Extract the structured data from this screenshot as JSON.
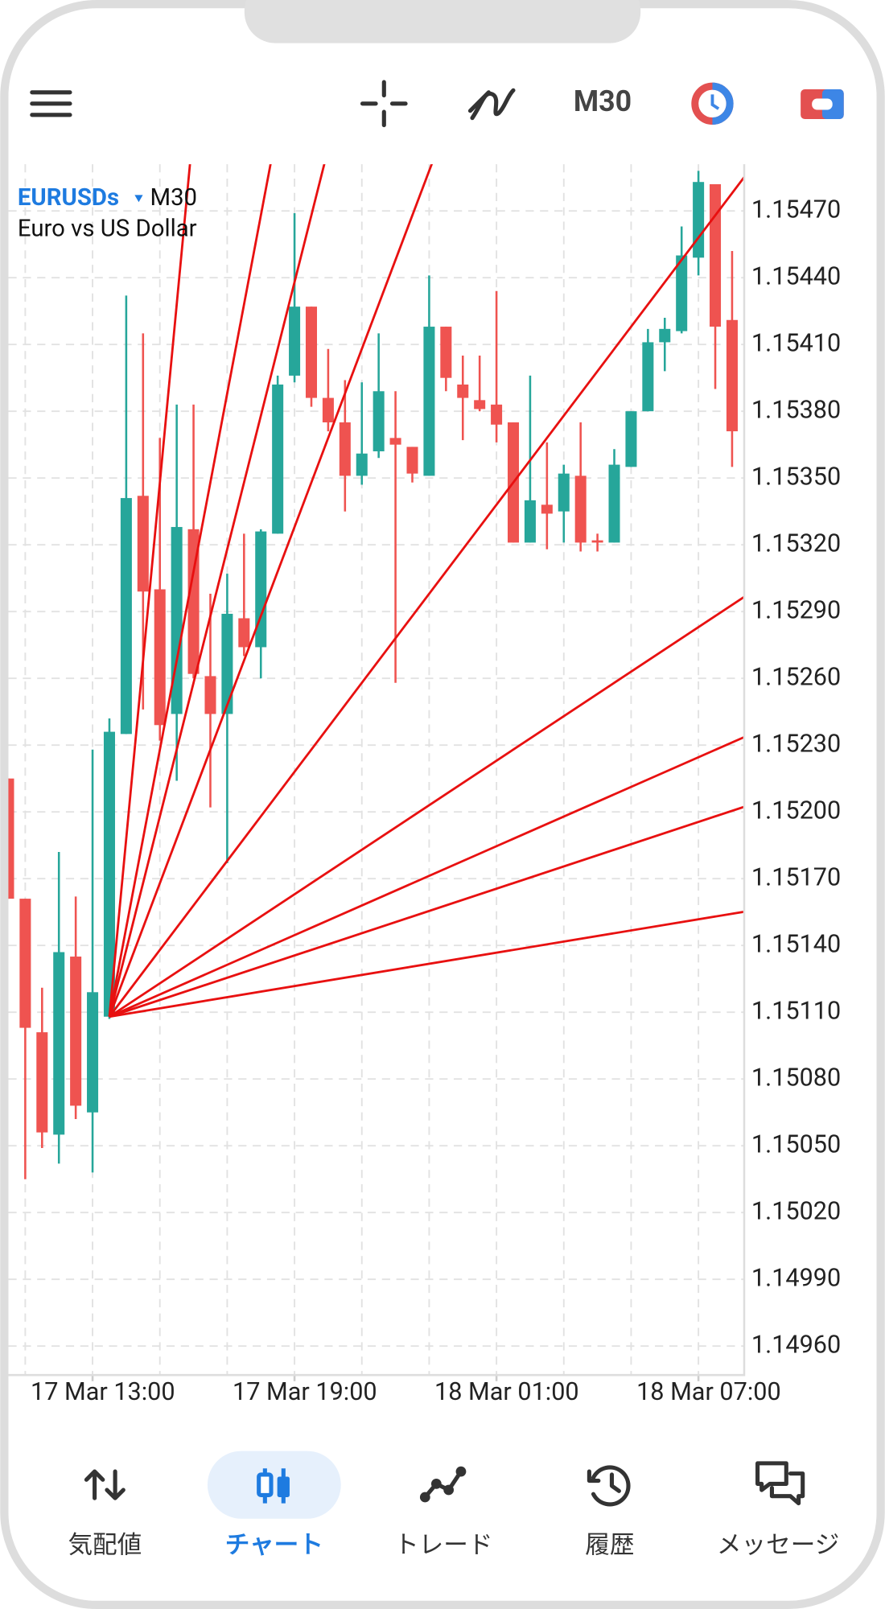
{
  "toolbar": {
    "timeframe": "M30"
  },
  "chart_data": {
    "type": "candlestick",
    "symbol": "EURUSDs",
    "timeframe": "M30",
    "description": "Euro vs US Dollar",
    "up_color": "#26a69a",
    "down_color": "#ef5350",
    "grid": true,
    "categories": [
      null,
      null,
      null,
      null,
      null,
      "17 Mar 13:00",
      null,
      null,
      null,
      null,
      null,
      null,
      null,
      null,
      null,
      null,
      null,
      "17 Mar 19:00",
      null,
      null,
      null,
      null,
      null,
      null,
      null,
      null,
      null,
      null,
      null,
      "18 Mar 01:00",
      null,
      null,
      null,
      null,
      null,
      null,
      null,
      null,
      null,
      null,
      null,
      "18 Mar 07:00",
      null,
      null
    ],
    "open": [
      1.15215,
      1.15161,
      1.15101,
      1.15055,
      1.15135,
      1.15065,
      1.15108,
      1.15235,
      1.15342,
      1.153,
      1.15244,
      1.15327,
      1.15261,
      1.15244,
      1.15287,
      1.15274,
      1.15325,
      1.15396,
      1.15427,
      1.15386,
      1.15375,
      1.15351,
      1.15362,
      1.15368,
      1.15364,
      1.15351,
      1.15418,
      1.15392,
      1.15385,
      1.15383,
      1.15375,
      1.15321,
      1.15338,
      1.15335,
      1.15351,
      1.15322,
      1.15321,
      1.15355,
      1.1538,
      1.15411,
      1.15416,
      1.15449,
      1.15482,
      1.15421
    ],
    "high": [
      1.15215,
      1.15161,
      1.15121,
      1.15182,
      1.15162,
      1.15228,
      1.15242,
      1.15432,
      1.15415,
      1.15368,
      1.15383,
      1.15383,
      1.15298,
      1.15307,
      1.15325,
      1.15327,
      1.15396,
      1.15469,
      1.15427,
      1.15408,
      1.15394,
      1.15393,
      1.15415,
      1.15389,
      1.15364,
      1.15441,
      1.15418,
      1.15405,
      1.15405,
      1.15434,
      1.15375,
      1.15396,
      1.15366,
      1.15356,
      1.15375,
      1.15325,
      1.15363,
      1.1538,
      1.15417,
      1.15422,
      1.15463,
      1.15488,
      1.15482,
      1.15452
    ],
    "low": [
      1.15161,
      1.15035,
      1.15049,
      1.15042,
      1.15062,
      1.15038,
      1.15107,
      1.15235,
      1.15246,
      1.15232,
      1.15214,
      1.1526,
      1.15202,
      1.15177,
      1.1527,
      1.1526,
      1.15325,
      1.15393,
      1.15382,
      1.15371,
      1.15335,
      1.15347,
      1.15359,
      1.15258,
      1.15348,
      1.15351,
      1.15389,
      1.15367,
      1.1538,
      1.15366,
      1.15321,
      1.15321,
      1.15318,
      1.15321,
      1.15317,
      1.15317,
      1.15321,
      1.15355,
      1.1538,
      1.15398,
      1.15415,
      1.15441,
      1.1539,
      1.15355
    ],
    "close": [
      1.15161,
      1.15103,
      1.15056,
      1.15137,
      1.15068,
      1.15119,
      1.15236,
      1.15341,
      1.15299,
      1.15239,
      1.15328,
      1.15262,
      1.15244,
      1.15289,
      1.15274,
      1.15326,
      1.15392,
      1.15427,
      1.15386,
      1.15375,
      1.15351,
      1.15361,
      1.15389,
      1.15365,
      1.15352,
      1.15418,
      1.15395,
      1.15386,
      1.15381,
      1.15374,
      1.15321,
      1.1534,
      1.15334,
      1.15352,
      1.15321,
      1.15321,
      1.15356,
      1.1538,
      1.15411,
      1.15417,
      1.1545,
      1.15483,
      1.15418,
      1.15371
    ],
    "ylim": [
      1.14947,
      1.15491
    ],
    "yticks": [
      {
        "value": 1.1547,
        "label": "1.15470"
      },
      {
        "value": 1.1544,
        "label": "1.15440"
      },
      {
        "value": 1.1541,
        "label": "1.15410"
      },
      {
        "value": 1.1538,
        "label": "1.15380"
      },
      {
        "value": 1.1535,
        "label": "1.15350"
      },
      {
        "value": 1.1532,
        "label": "1.15320"
      },
      {
        "value": 1.1529,
        "label": "1.15290"
      },
      {
        "value": 1.1526,
        "label": "1.15260"
      },
      {
        "value": 1.1523,
        "label": "1.15230"
      },
      {
        "value": 1.152,
        "label": "1.15200"
      },
      {
        "value": 1.1517,
        "label": "1.15170"
      },
      {
        "value": 1.1514,
        "label": "1.15140"
      },
      {
        "value": 1.1511,
        "label": "1.15110"
      },
      {
        "value": 1.1508,
        "label": "1.15080"
      },
      {
        "value": 1.1505,
        "label": "1.15050"
      },
      {
        "value": 1.1502,
        "label": "1.15020"
      },
      {
        "value": 1.1499,
        "label": "1.14990"
      },
      {
        "value": 1.1496,
        "label": "1.14960"
      }
    ],
    "gann_fan": {
      "color": "#e81010",
      "origin": [
        6,
        1.15108
      ],
      "slope": 0.0001,
      "ratios": [
        8,
        4,
        3,
        2,
        1,
        0.5,
        0.333,
        0.25,
        0.125
      ]
    }
  },
  "nav": {
    "items": [
      {
        "label": "気配値"
      },
      {
        "label": "チャート"
      },
      {
        "label": "トレード"
      },
      {
        "label": "履歴"
      },
      {
        "label": "メッセージ"
      }
    ],
    "active": 1
  }
}
